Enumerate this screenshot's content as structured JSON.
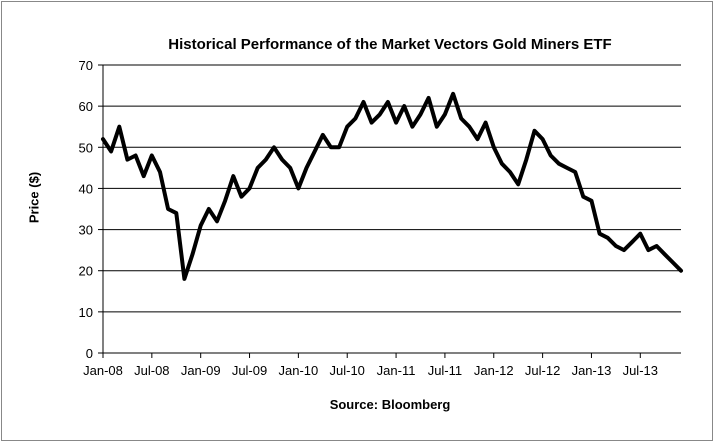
{
  "chart_data": {
    "type": "line",
    "title": "Historical Performance of the Market Vectors Gold Miners ETF",
    "ylabel": "Price ($)",
    "xlabel": "Source: Bloomberg",
    "ylim": [
      0,
      70
    ],
    "yticks": [
      0,
      10,
      20,
      30,
      40,
      50,
      60,
      70
    ],
    "xticks": [
      "Jan-08",
      "Jul-08",
      "Jan-09",
      "Jul-09",
      "Jan-10",
      "Jul-10",
      "Jan-11",
      "Jul-11",
      "Jan-12",
      "Jul-12",
      "Jan-13",
      "Jul-13"
    ],
    "grid": "horizontal",
    "legend": "none",
    "line_color": "#000000",
    "series": [
      {
        "x": [
          "Jan-08",
          "Feb-08",
          "Mar-08",
          "Apr-08",
          "May-08",
          "Jun-08",
          "Jul-08",
          "Aug-08",
          "Sep-08",
          "Oct-08",
          "Nov-08",
          "Dec-08",
          "Jan-09",
          "Feb-09",
          "Mar-09",
          "Apr-09",
          "May-09",
          "Jun-09",
          "Jul-09",
          "Aug-09",
          "Sep-09",
          "Oct-09",
          "Nov-09",
          "Dec-09",
          "Jan-10",
          "Feb-10",
          "Mar-10",
          "Apr-10",
          "May-10",
          "Jun-10",
          "Jul-10",
          "Aug-10",
          "Sep-10",
          "Oct-10",
          "Nov-10",
          "Dec-10",
          "Jan-11",
          "Feb-11",
          "Mar-11",
          "Apr-11",
          "May-11",
          "Jun-11",
          "Jul-11",
          "Aug-11",
          "Sep-11",
          "Oct-11",
          "Nov-11",
          "Dec-11",
          "Jan-12",
          "Feb-12",
          "Mar-12",
          "Apr-12",
          "May-12",
          "Jun-12",
          "Jul-12",
          "Aug-12",
          "Sep-12",
          "Oct-12",
          "Nov-12",
          "Dec-12",
          "Jan-13",
          "Feb-13",
          "Mar-13",
          "Apr-13",
          "May-13",
          "Jun-13",
          "Jul-13",
          "Aug-13",
          "Sep-13",
          "Oct-13",
          "Nov-13",
          "Dec-13"
        ],
        "values": [
          52,
          49,
          55,
          47,
          48,
          43,
          48,
          44,
          35,
          34,
          18,
          24,
          31,
          35,
          32,
          37,
          43,
          38,
          40,
          45,
          47,
          50,
          47,
          45,
          40,
          45,
          49,
          53,
          50,
          50,
          55,
          57,
          61,
          56,
          58,
          61,
          56,
          60,
          55,
          58,
          62,
          55,
          58,
          63,
          57,
          55,
          52,
          56,
          50,
          46,
          44,
          41,
          47,
          54,
          52,
          48,
          46,
          45,
          44,
          38,
          37,
          29,
          28,
          26,
          25,
          27,
          29,
          25,
          26,
          24,
          22,
          20
        ]
      }
    ]
  }
}
